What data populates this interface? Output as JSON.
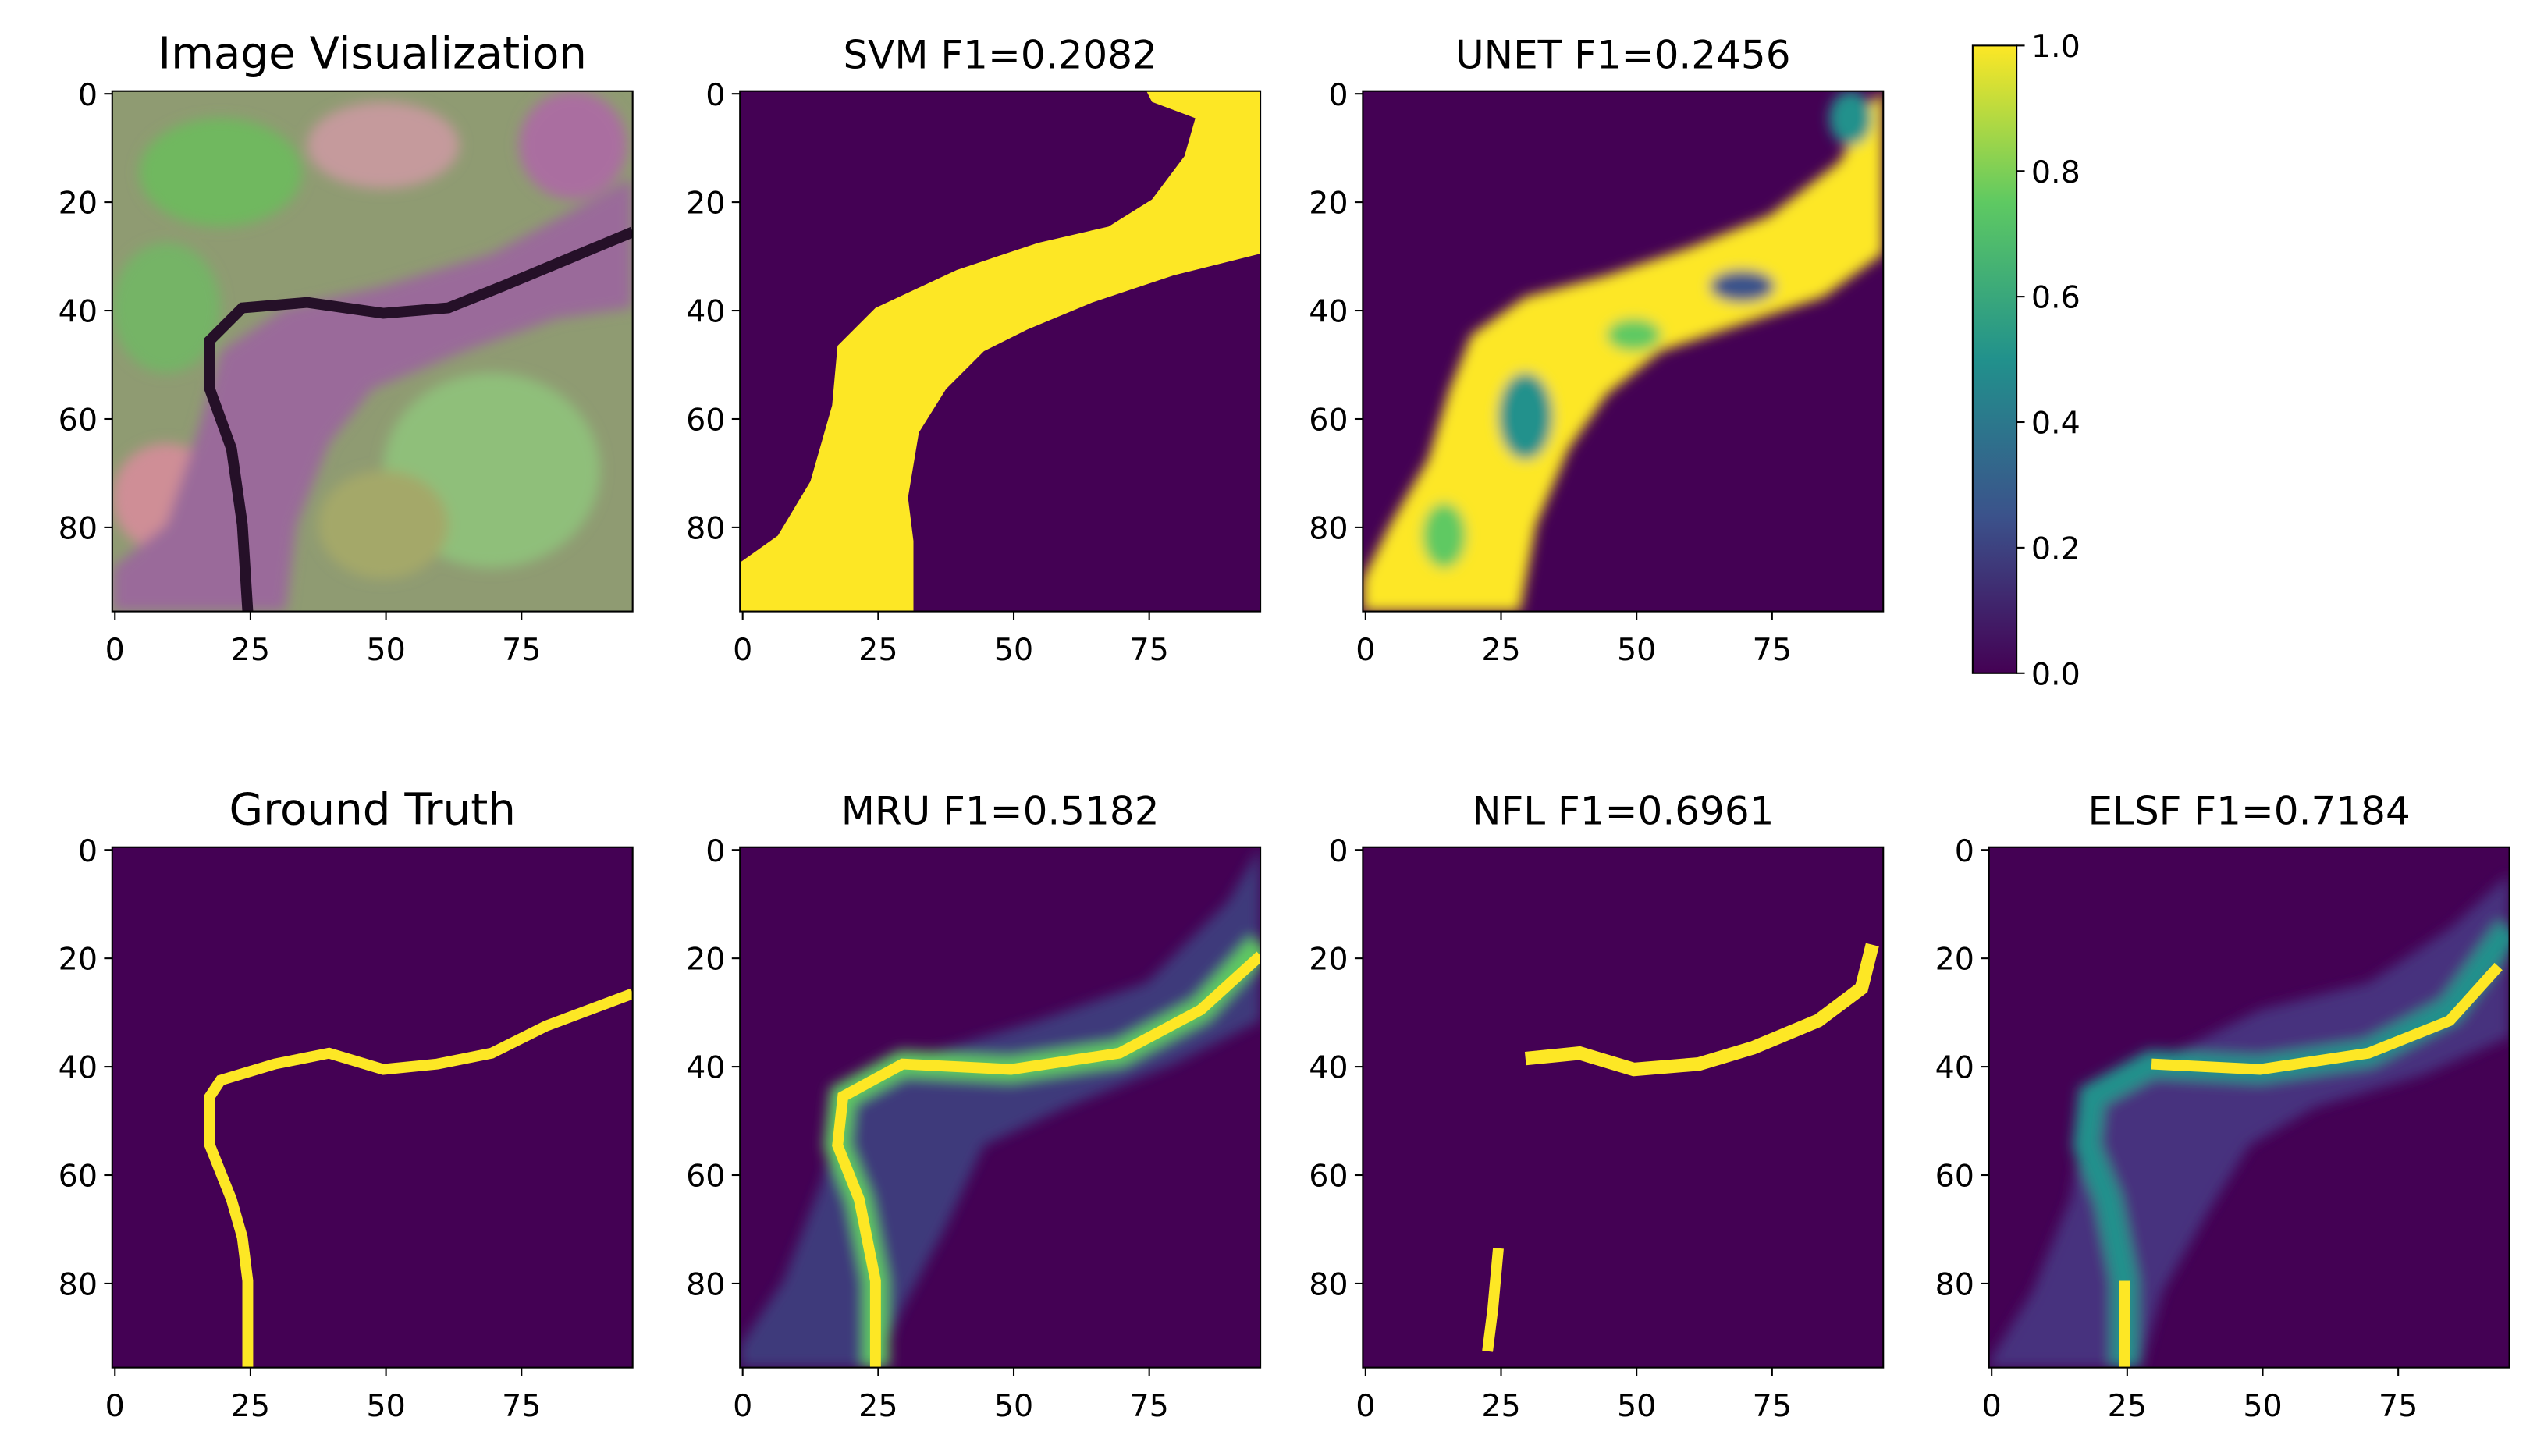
{
  "chart_data": [
    {
      "type": "image",
      "title": "Image Visualization",
      "xlim": [
        -0.5,
        95.5
      ],
      "ylim": [
        95.5,
        -0.5
      ],
      "xticks": [
        0,
        25,
        50,
        75
      ],
      "yticks": [
        0,
        20,
        40,
        60,
        80
      ]
    },
    {
      "type": "image",
      "title": "SVM F1=0.2082",
      "xlim": [
        -0.5,
        95.5
      ],
      "ylim": [
        95.5,
        -0.5
      ],
      "xticks": [
        0,
        25,
        50,
        75
      ],
      "yticks": [
        0,
        20,
        40,
        60,
        80
      ]
    },
    {
      "type": "image",
      "title": "UNET F1=0.2456",
      "xlim": [
        -0.5,
        95.5
      ],
      "ylim": [
        95.5,
        -0.5
      ],
      "xticks": [
        0,
        25,
        50,
        75
      ],
      "yticks": [
        0,
        20,
        40,
        60,
        80
      ]
    },
    {
      "type": "colorbar",
      "ylim": [
        0,
        1
      ],
      "yticks": [
        {
          "value": 0,
          "label": "0.0"
        },
        0.2,
        0.4,
        0.6,
        0.8,
        {
          "value": 1,
          "label": "1.0"
        }
      ]
    },
    {
      "type": "image",
      "title": "Ground Truth",
      "xlim": [
        -0.5,
        95.5
      ],
      "ylim": [
        95.5,
        -0.5
      ],
      "xticks": [
        0,
        25,
        50,
        75
      ],
      "yticks": [
        0,
        20,
        40,
        60,
        80
      ]
    },
    {
      "type": "image",
      "title": "MRU F1=0.5182",
      "xlim": [
        -0.5,
        95.5
      ],
      "ylim": [
        95.5,
        -0.5
      ],
      "xticks": [
        0,
        25,
        50,
        75
      ],
      "yticks": [
        0,
        20,
        40,
        60,
        80
      ]
    },
    {
      "type": "image",
      "title": "NFL F1=0.6961",
      "xlim": [
        -0.5,
        95.5
      ],
      "ylim": [
        95.5,
        -0.5
      ],
      "xticks": [
        0,
        25,
        50,
        75
      ],
      "yticks": [
        0,
        20,
        40,
        60,
        80
      ]
    },
    {
      "type": "image",
      "title": "ELSF F1=0.7184",
      "xlim": [
        -0.5,
        95.5
      ],
      "ylim": [
        95.5,
        -0.5
      ],
      "xticks": [
        0,
        25,
        50,
        75
      ],
      "yticks": [
        0,
        20,
        40,
        60,
        80
      ]
    }
  ]
}
